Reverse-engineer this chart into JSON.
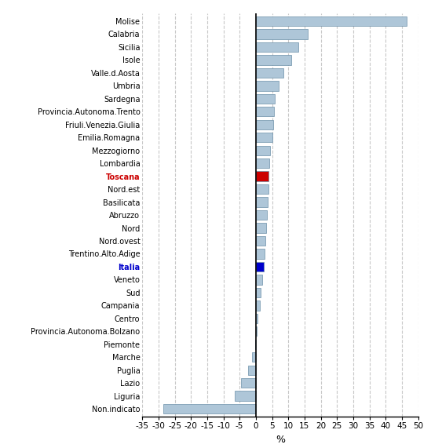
{
  "categories": [
    "Non.indicato",
    "Liguria",
    "Lazio",
    "Puglia",
    "Marche",
    "Piemonte",
    "Provincia.Autonoma.Bolzano",
    "Centro",
    "Campania",
    "Sud",
    "Veneto",
    "Italia",
    "Trentino.Alto.Adige",
    "Nord.ovest",
    "Nord",
    "Abruzzo",
    "Basilicata",
    "Nord.est",
    "Toscana",
    "Lombardia",
    "Mezzogiorno",
    "Emilia.Romagna",
    "Friuli.Venezia.Giulia",
    "Provincia.Autonoma.Trento",
    "Sardegna",
    "Umbria",
    "Valle.d.Aosta",
    "Isole",
    "Sicilia",
    "Calabria",
    "Molise"
  ],
  "values": [
    -28.5,
    -6.5,
    -4.5,
    -2.5,
    -1.2,
    -0.3,
    0.2,
    0.4,
    1.2,
    1.5,
    2.0,
    2.5,
    2.8,
    3.0,
    3.2,
    3.4,
    3.6,
    3.8,
    4.0,
    4.2,
    4.5,
    5.0,
    5.3,
    5.5,
    5.8,
    7.0,
    8.5,
    11.0,
    13.0,
    16.0,
    46.5
  ],
  "bar_colors": [
    "#aec6d8",
    "#aec6d8",
    "#aec6d8",
    "#aec6d8",
    "#aec6d8",
    "#aec6d8",
    "#aec6d8",
    "#aec6d8",
    "#aec6d8",
    "#aec6d8",
    "#aec6d8",
    "#0000cc",
    "#aec6d8",
    "#aec6d8",
    "#aec6d8",
    "#aec6d8",
    "#aec6d8",
    "#aec6d8",
    "#cc0000",
    "#aec6d8",
    "#aec6d8",
    "#aec6d8",
    "#aec6d8",
    "#aec6d8",
    "#aec6d8",
    "#aec6d8",
    "#aec6d8",
    "#aec6d8",
    "#aec6d8",
    "#aec6d8",
    "#aec6d8"
  ],
  "label_colors": [
    "black",
    "black",
    "black",
    "black",
    "black",
    "black",
    "black",
    "black",
    "black",
    "black",
    "black",
    "#0000cc",
    "black",
    "black",
    "black",
    "black",
    "black",
    "black",
    "#cc0000",
    "black",
    "black",
    "black",
    "black",
    "black",
    "black",
    "black",
    "black",
    "black",
    "black",
    "black",
    "black"
  ],
  "label_bold": [
    false,
    false,
    false,
    false,
    false,
    false,
    false,
    false,
    false,
    false,
    false,
    true,
    false,
    false,
    false,
    false,
    false,
    false,
    true,
    false,
    false,
    false,
    false,
    false,
    false,
    false,
    false,
    false,
    false,
    false,
    false
  ],
  "xlim": [
    -35,
    50
  ],
  "xticks": [
    -35,
    -30,
    -25,
    -20,
    -15,
    -10,
    -5,
    0,
    5,
    10,
    15,
    20,
    25,
    30,
    35,
    40,
    45,
    50
  ],
  "xlabel": "%",
  "background_color": "#ffffff",
  "grid_color": "#c8c8c8",
  "bar_edge_color": "#6b8fa8",
  "bar_height": 0.75,
  "fontsize_labels": 7.0,
  "fontsize_ticks": 7.5
}
